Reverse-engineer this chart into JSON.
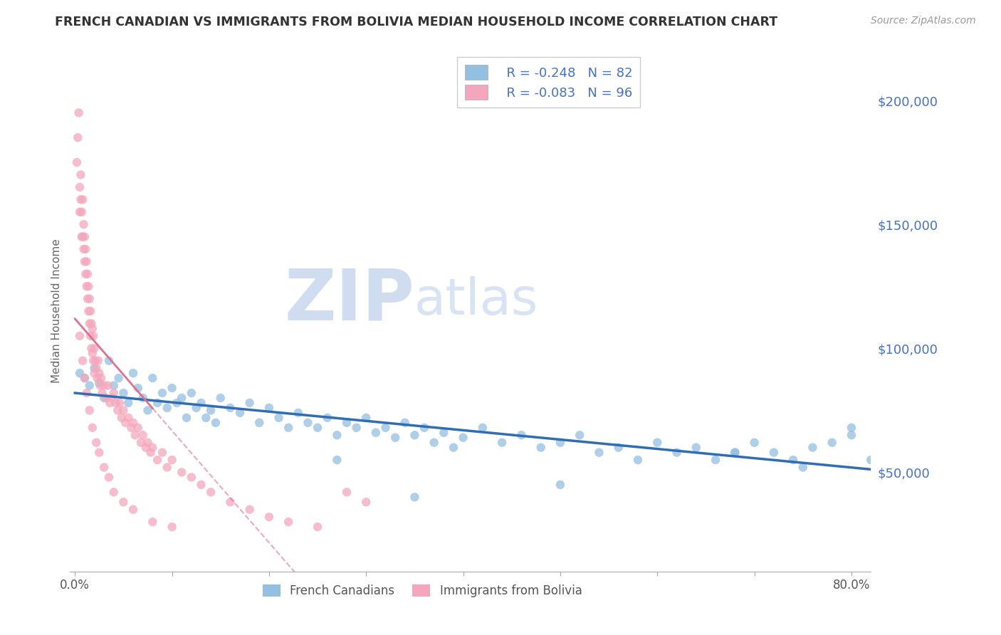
{
  "title": "FRENCH CANADIAN VS IMMIGRANTS FROM BOLIVIA MEDIAN HOUSEHOLD INCOME CORRELATION CHART",
  "source": "Source: ZipAtlas.com",
  "ylabel": "Median Household Income",
  "series1_label": "French Canadians",
  "series2_label": "Immigrants from Bolivia",
  "series1_color": "#93bfe0",
  "series2_color": "#f4a7bc",
  "series1_line_color": "#2f6db5",
  "series2_line_color": "#e07090",
  "series1_R": -0.248,
  "series1_N": 82,
  "series2_R": -0.083,
  "series2_N": 96,
  "xlim": [
    -0.005,
    0.82
  ],
  "ylim": [
    10000,
    220000
  ],
  "yticks": [
    50000,
    100000,
    150000,
    200000
  ],
  "ytick_labels": [
    "$50,000",
    "$100,000",
    "$150,000",
    "$200,000"
  ],
  "xtick_positions": [
    0.0,
    0.1,
    0.2,
    0.3,
    0.4,
    0.5,
    0.6,
    0.7,
    0.8
  ],
  "background_color": "#ffffff",
  "grid_color": "#cccccc",
  "title_color": "#444444",
  "series1_x": [
    0.005,
    0.01,
    0.015,
    0.02,
    0.025,
    0.03,
    0.035,
    0.04,
    0.045,
    0.05,
    0.055,
    0.06,
    0.065,
    0.07,
    0.075,
    0.08,
    0.085,
    0.09,
    0.095,
    0.1,
    0.105,
    0.11,
    0.115,
    0.12,
    0.125,
    0.13,
    0.135,
    0.14,
    0.145,
    0.15,
    0.16,
    0.17,
    0.18,
    0.19,
    0.2,
    0.21,
    0.22,
    0.23,
    0.24,
    0.25,
    0.26,
    0.27,
    0.28,
    0.29,
    0.3,
    0.31,
    0.32,
    0.33,
    0.34,
    0.35,
    0.36,
    0.37,
    0.38,
    0.39,
    0.4,
    0.42,
    0.44,
    0.46,
    0.48,
    0.5,
    0.52,
    0.54,
    0.56,
    0.58,
    0.6,
    0.62,
    0.64,
    0.66,
    0.68,
    0.7,
    0.72,
    0.74,
    0.76,
    0.78,
    0.8,
    0.8,
    0.82,
    0.75,
    0.68,
    0.5,
    0.35,
    0.27
  ],
  "series1_y": [
    90000,
    88000,
    85000,
    92000,
    86000,
    80000,
    95000,
    85000,
    88000,
    82000,
    78000,
    90000,
    84000,
    80000,
    75000,
    88000,
    78000,
    82000,
    76000,
    84000,
    78000,
    80000,
    72000,
    82000,
    76000,
    78000,
    72000,
    75000,
    70000,
    80000,
    76000,
    74000,
    78000,
    70000,
    76000,
    72000,
    68000,
    74000,
    70000,
    68000,
    72000,
    65000,
    70000,
    68000,
    72000,
    66000,
    68000,
    64000,
    70000,
    65000,
    68000,
    62000,
    66000,
    60000,
    64000,
    68000,
    62000,
    65000,
    60000,
    62000,
    65000,
    58000,
    60000,
    55000,
    62000,
    58000,
    60000,
    55000,
    58000,
    62000,
    58000,
    55000,
    60000,
    62000,
    65000,
    68000,
    55000,
    52000,
    58000,
    45000,
    40000,
    55000
  ],
  "series2_x": [
    0.002,
    0.003,
    0.004,
    0.005,
    0.005,
    0.006,
    0.006,
    0.007,
    0.007,
    0.008,
    0.008,
    0.009,
    0.009,
    0.01,
    0.01,
    0.011,
    0.011,
    0.012,
    0.012,
    0.013,
    0.013,
    0.014,
    0.014,
    0.015,
    0.015,
    0.016,
    0.016,
    0.017,
    0.017,
    0.018,
    0.018,
    0.019,
    0.019,
    0.02,
    0.02,
    0.021,
    0.022,
    0.023,
    0.024,
    0.025,
    0.026,
    0.027,
    0.028,
    0.03,
    0.032,
    0.034,
    0.036,
    0.038,
    0.04,
    0.042,
    0.044,
    0.046,
    0.048,
    0.05,
    0.052,
    0.055,
    0.058,
    0.06,
    0.062,
    0.065,
    0.068,
    0.07,
    0.073,
    0.075,
    0.078,
    0.08,
    0.085,
    0.09,
    0.095,
    0.1,
    0.11,
    0.12,
    0.13,
    0.14,
    0.16,
    0.18,
    0.2,
    0.22,
    0.25,
    0.28,
    0.3,
    0.005,
    0.008,
    0.01,
    0.012,
    0.015,
    0.018,
    0.022,
    0.025,
    0.03,
    0.035,
    0.04,
    0.05,
    0.06,
    0.08,
    0.1
  ],
  "series2_y": [
    175000,
    185000,
    195000,
    165000,
    155000,
    170000,
    160000,
    155000,
    145000,
    160000,
    145000,
    150000,
    140000,
    145000,
    135000,
    140000,
    130000,
    135000,
    125000,
    130000,
    120000,
    125000,
    115000,
    120000,
    110000,
    115000,
    105000,
    110000,
    100000,
    108000,
    98000,
    105000,
    95000,
    100000,
    90000,
    95000,
    92000,
    88000,
    95000,
    90000,
    85000,
    88000,
    82000,
    85000,
    80000,
    85000,
    78000,
    80000,
    82000,
    78000,
    75000,
    78000,
    72000,
    75000,
    70000,
    72000,
    68000,
    70000,
    65000,
    68000,
    62000,
    65000,
    60000,
    62000,
    58000,
    60000,
    55000,
    58000,
    52000,
    55000,
    50000,
    48000,
    45000,
    42000,
    38000,
    35000,
    32000,
    30000,
    28000,
    42000,
    38000,
    105000,
    95000,
    88000,
    82000,
    75000,
    68000,
    62000,
    58000,
    52000,
    48000,
    42000,
    38000,
    35000,
    30000,
    28000
  ]
}
